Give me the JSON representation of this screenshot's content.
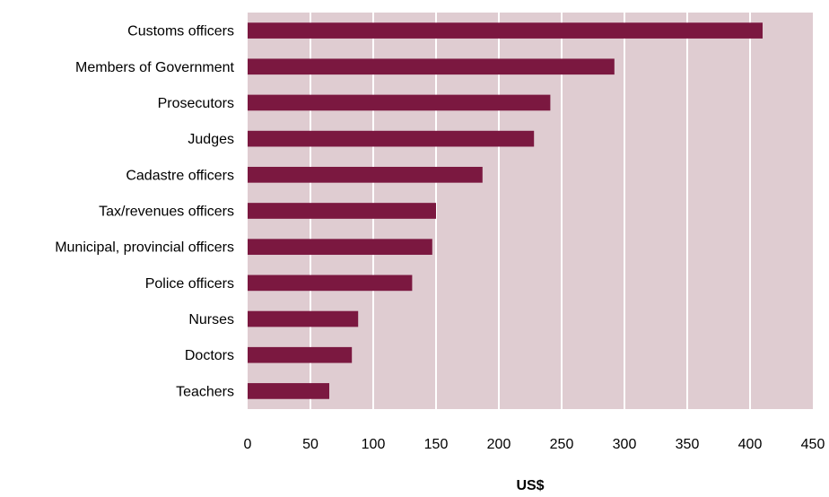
{
  "chart_data": {
    "type": "bar",
    "orientation": "horizontal",
    "categories": [
      "Customs officers",
      "Members of Government",
      "Prosecutors",
      "Judges",
      "Cadastre officers",
      "Tax/revenues officers",
      "Municipal, provincial officers",
      "Police officers",
      "Nurses",
      "Doctors",
      "Teachers"
    ],
    "values": [
      410,
      292,
      241,
      228,
      187,
      150,
      147,
      131,
      88,
      83,
      65
    ],
    "title": "",
    "xlabel": "US$",
    "ylabel": "",
    "xlim": [
      0,
      450
    ],
    "xticks": [
      0,
      50,
      100,
      150,
      200,
      250,
      300,
      350,
      400,
      450
    ],
    "grid": "vertical",
    "legend": "none",
    "colors": {
      "bar": "#7b1840",
      "plot_background": "#dfccd1",
      "gridline": "#ffffff"
    }
  }
}
